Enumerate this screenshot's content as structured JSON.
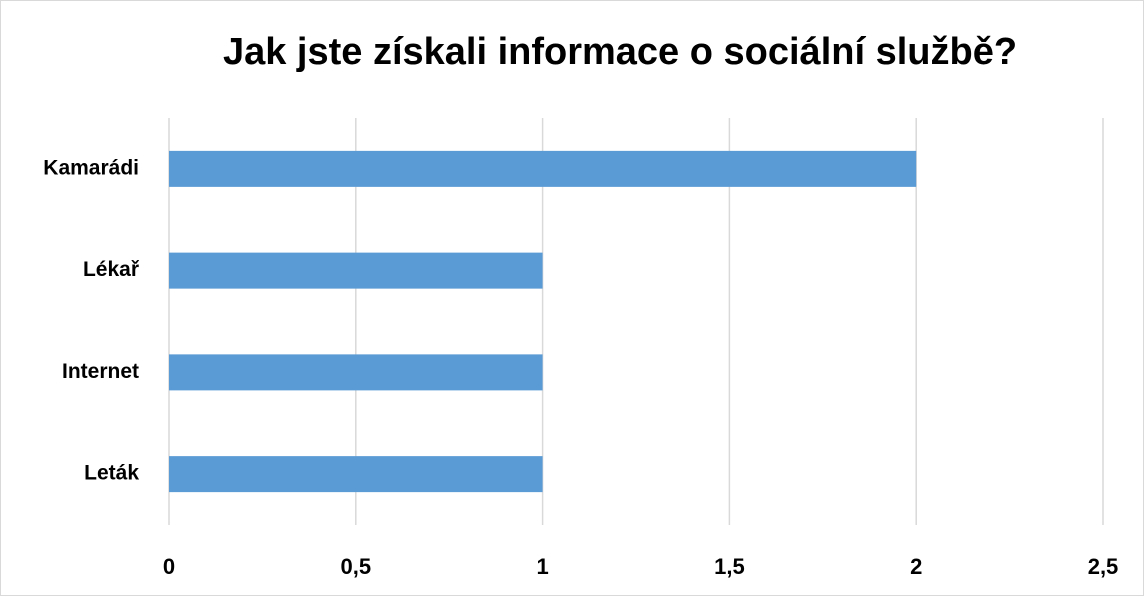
{
  "chart_data": {
    "type": "bar",
    "orientation": "horizontal",
    "title": "Jak jste získali informace o sociální službě?",
    "categories": [
      "Kamarádi",
      "Lékař",
      "Internet",
      "Leták"
    ],
    "values": [
      2,
      1,
      1,
      1
    ],
    "color": "#5b9bd5",
    "xlim": [
      0,
      2.5
    ],
    "xticks": [
      0,
      {
        "value": 0.5,
        "label": "0,5"
      },
      1,
      {
        "value": 1.5,
        "label": "1,5"
      },
      2,
      {
        "value": 2.5,
        "label": "2,5"
      }
    ],
    "grid": true
  }
}
